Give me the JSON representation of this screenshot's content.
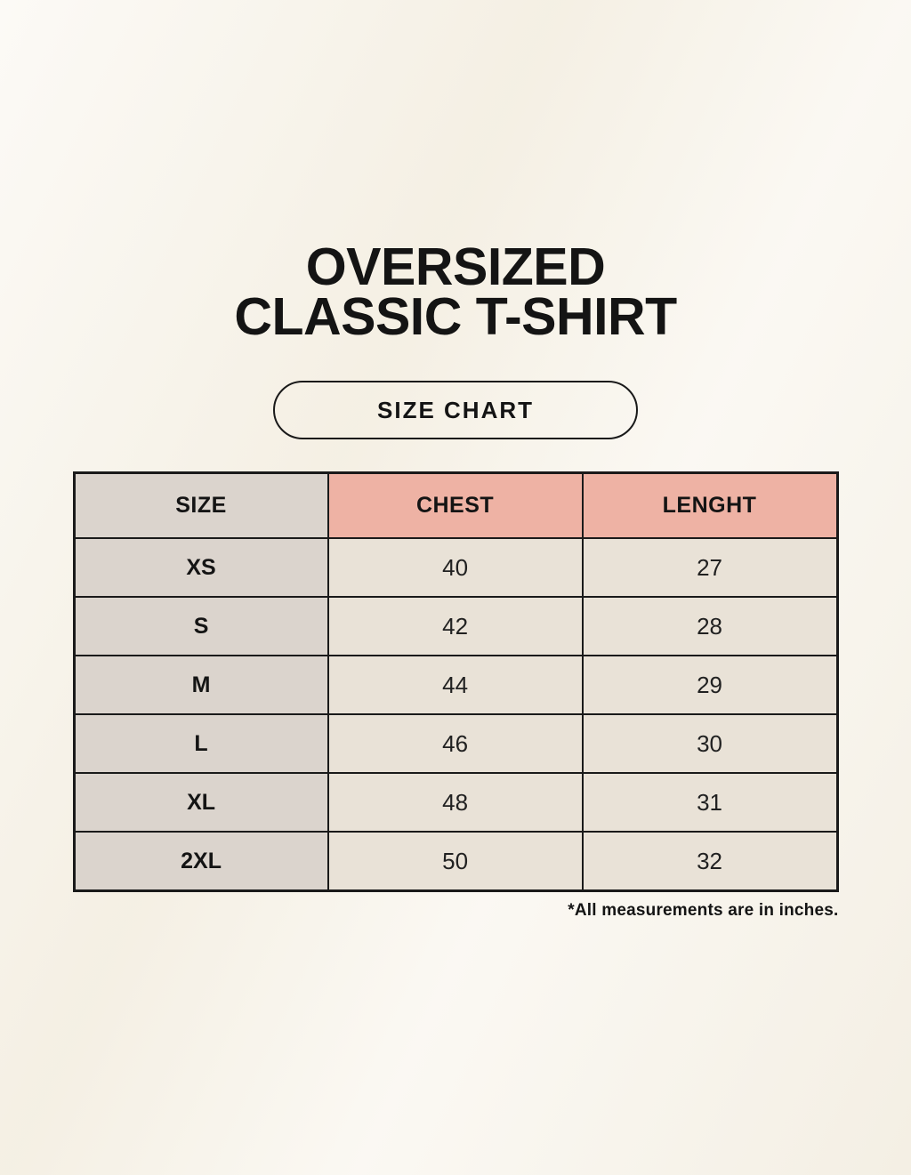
{
  "header": {
    "title_line1": "OVERSIZED",
    "title_line2": "CLASSIC T-SHIRT",
    "size_chart_label": "SIZE CHART"
  },
  "footnote": "*All measurements are in inches.",
  "colors": {
    "background": "#f8f4eb",
    "size_column_bg": "#dbd4cd",
    "measurement_header_bg": "#eeb2a4",
    "data_cell_bg": "#e9e2d7",
    "border": "#1a1a1a",
    "text": "#141414"
  },
  "chart_data": {
    "type": "table",
    "title": "OVERSIZED CLASSIC T-SHIRT",
    "subtitle": "SIZE CHART",
    "columns": [
      "SIZE",
      "CHEST",
      "LENGHT"
    ],
    "units": "inches",
    "rows": [
      [
        "XS",
        "40",
        "27"
      ],
      [
        "S",
        "42",
        "28"
      ],
      [
        "M",
        "44",
        "29"
      ],
      [
        "L",
        "46",
        "30"
      ],
      [
        "XL",
        "48",
        "31"
      ],
      [
        "2XL",
        "50",
        "32"
      ]
    ]
  }
}
